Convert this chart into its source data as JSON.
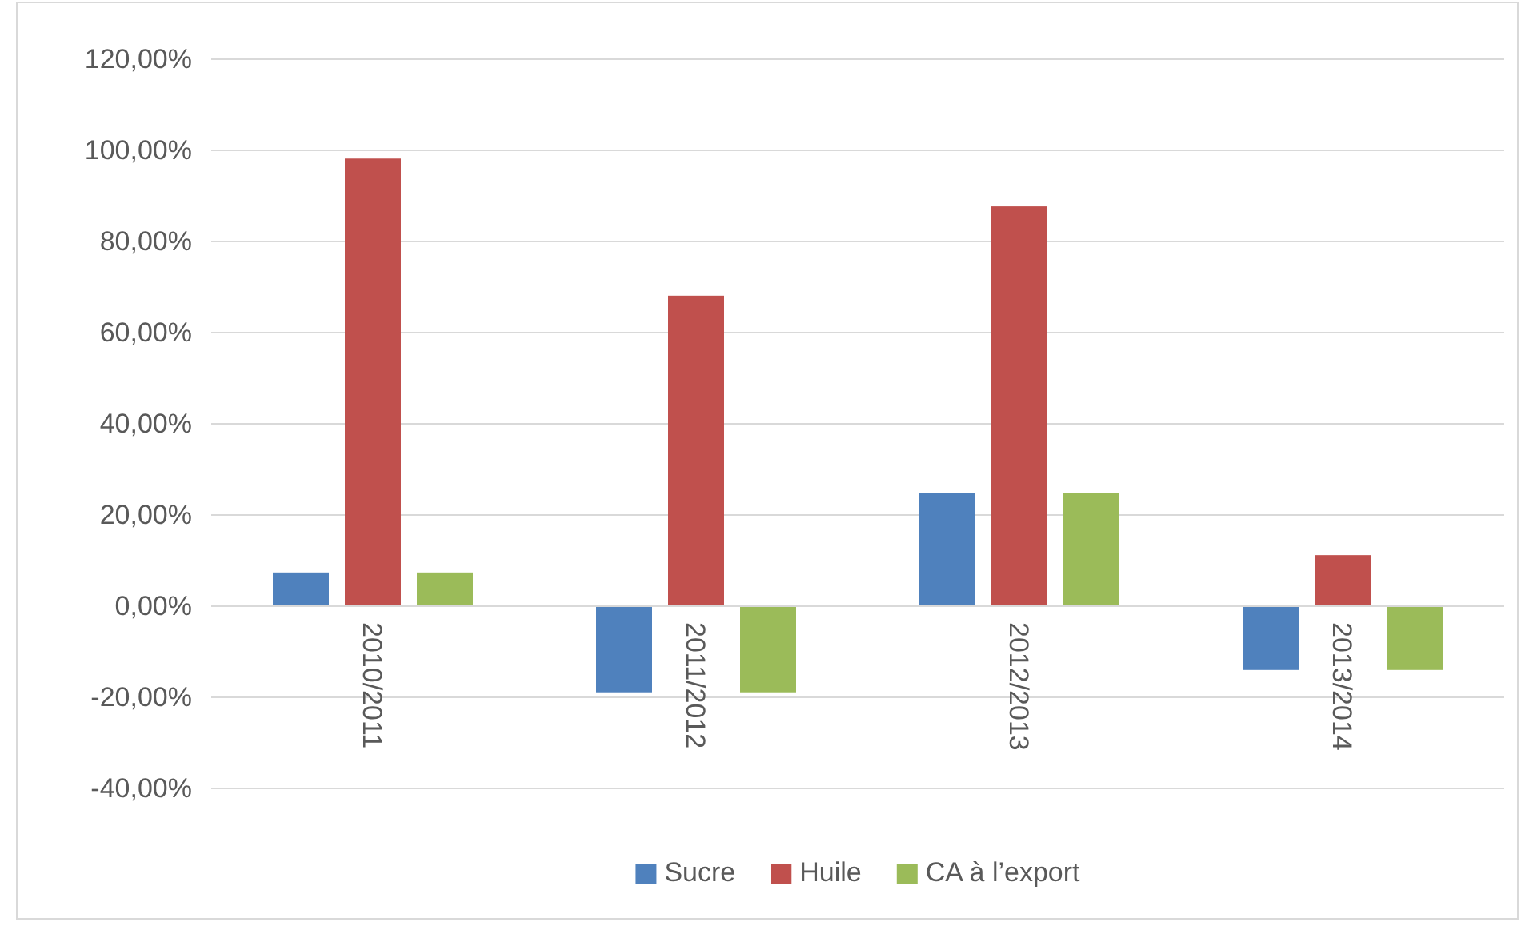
{
  "chart_data": {
    "type": "bar",
    "categories": [
      "2010/2011",
      "2011/2012",
      "2012/2013",
      "2013/2014"
    ],
    "series": [
      {
        "name": "Sucre",
        "color": "#4f81bd",
        "values": [
          7.4,
          -18.9,
          24.9,
          -14.0
        ]
      },
      {
        "name": "Huile",
        "color": "#c0504d",
        "values": [
          98.2,
          68.1,
          87.7,
          11.2
        ]
      },
      {
        "name": "CA à  l’export",
        "color": "#9bbb59",
        "values": [
          7.4,
          -18.9,
          24.9,
          -14.0
        ]
      }
    ],
    "ylim": [
      -40,
      120
    ],
    "yticks": [
      {
        "value": -40,
        "label": "-40,00%"
      },
      {
        "value": -20,
        "label": "-20,00%"
      },
      {
        "value": 0,
        "label": "0,00%"
      },
      {
        "value": 20,
        "label": "20,00%"
      },
      {
        "value": 40,
        "label": "40,00%"
      },
      {
        "value": 60,
        "label": "60,00%"
      },
      {
        "value": 80,
        "label": "80,00%"
      },
      {
        "value": 100,
        "label": "100,00%"
      },
      {
        "value": 120,
        "label": "120,00%"
      }
    ],
    "grid": "y",
    "legend": "bottom"
  }
}
